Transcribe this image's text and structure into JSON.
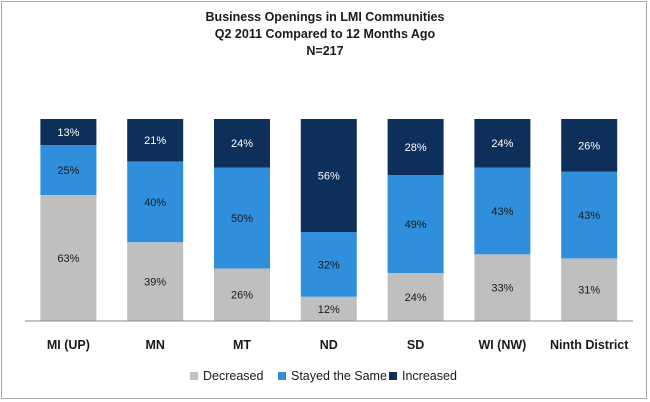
{
  "chart_data": {
    "type": "bar",
    "stacked": true,
    "percent": true,
    "title": "Business Openings in LMI Communities",
    "subtitle": "Q2 2011 Compared to 12 Months Ago",
    "subtitle2": "N=217",
    "categories": [
      "MI (UP)",
      "MN",
      "MT",
      "ND",
      "SD",
      "WI (NW)",
      "Ninth District"
    ],
    "series": [
      {
        "name": "Decreased",
        "color": "#bfbfbf",
        "label_color": "#1a1a1a",
        "values": [
          63,
          39,
          26,
          12,
          24,
          33,
          31
        ]
      },
      {
        "name": "Stayed the Same",
        "color": "#2f8fdc",
        "label_color": "#1a1a1a",
        "values": [
          25,
          40,
          50,
          32,
          49,
          43,
          43
        ]
      },
      {
        "name": "Increased",
        "color": "#0e2f5a",
        "label_color": "#ffffff",
        "values": [
          13,
          21,
          24,
          56,
          28,
          24,
          26
        ]
      }
    ],
    "ylim": [
      0,
      100
    ],
    "grid": false,
    "legend_position": "bottom"
  }
}
